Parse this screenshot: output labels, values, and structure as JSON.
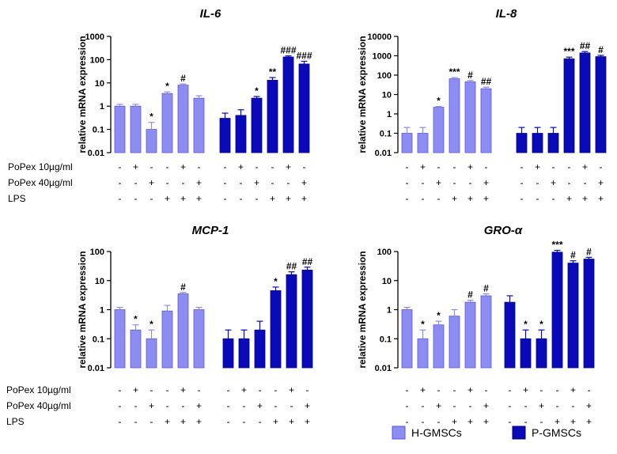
{
  "conditions": {
    "labels": [
      "PoPex 10µg/ml",
      "PoPex 40µg/ml",
      "LPS"
    ],
    "patterns": [
      [
        "-",
        "+",
        "-",
        "-",
        "+",
        "-"
      ],
      [
        "-",
        "-",
        "+",
        "-",
        "-",
        "+"
      ],
      [
        "-",
        "-",
        "-",
        "+",
        "+",
        "+"
      ]
    ]
  },
  "legend": {
    "items": [
      {
        "label": "H-GMSCs",
        "color": "#8c8cf2"
      },
      {
        "label": "P-GMSCs",
        "color": "#0a0ab8"
      }
    ]
  },
  "chart_data": [
    {
      "type": "bar",
      "title": "IL-6",
      "ylabel": "relative mRNA expression",
      "yscale": "log",
      "ylim": [
        0.01,
        1000
      ],
      "yticks": [
        "0.01",
        "0.1",
        "1",
        "10",
        "100",
        "1000"
      ],
      "series": [
        {
          "values": [
            1,
            1,
            0.1,
            3.5,
            8,
            2.2
          ],
          "errors": [
            0.2,
            0.2,
            0.1,
            0.6,
            1,
            0.6
          ],
          "sig": [
            "",
            "",
            "*",
            "*",
            "#",
            ""
          ]
        },
        {
          "values": [
            0.3,
            0.4,
            2.2,
            13,
            130,
            65
          ],
          "errors": [
            0.2,
            0.3,
            0.4,
            4,
            15,
            20
          ],
          "sig": [
            "",
            "",
            "*",
            "**",
            "###",
            "###"
          ]
        }
      ]
    },
    {
      "type": "bar",
      "title": "IL-8",
      "ylabel": "relative mRNA expression",
      "yscale": "log",
      "ylim": [
        0.01,
        10000
      ],
      "yticks": [
        "0.01",
        "0.1",
        "1",
        "10",
        "100",
        "1000",
        "10000"
      ],
      "series": [
        {
          "values": [
            0.1,
            0.1,
            2.2,
            65,
            45,
            20
          ],
          "errors": [
            0.1,
            0.1,
            0.2,
            10,
            8,
            4
          ],
          "sig": [
            "",
            "",
            "*",
            "***",
            "#",
            "##"
          ]
        },
        {
          "values": [
            0.1,
            0.1,
            0.1,
            700,
            1400,
            900
          ],
          "errors": [
            0.1,
            0.1,
            0.1,
            150,
            250,
            150
          ],
          "sig": [
            "",
            "",
            "",
            "***",
            "##",
            "#"
          ]
        }
      ]
    },
    {
      "type": "bar",
      "title": "MCP-1",
      "ylabel": "relative mRNA expression",
      "yscale": "log",
      "ylim": [
        0.01,
        100
      ],
      "yticks": [
        "0.01",
        "0.1",
        "1",
        "10",
        "100"
      ],
      "series": [
        {
          "values": [
            1,
            0.2,
            0.1,
            0.9,
            3.5,
            1
          ],
          "errors": [
            0.2,
            0.1,
            0.1,
            0.5,
            0.4,
            0.2
          ],
          "sig": [
            "",
            "*",
            "*",
            "",
            "#",
            ""
          ]
        },
        {
          "values": [
            0.1,
            0.1,
            0.2,
            4.5,
            16,
            23
          ],
          "errors": [
            0.1,
            0.1,
            0.2,
            1.5,
            4,
            6
          ],
          "sig": [
            "",
            "",
            "",
            "*",
            "##",
            "##"
          ]
        }
      ]
    },
    {
      "type": "bar",
      "title": "GRO-α",
      "ylabel": "relative mRNA expression",
      "yscale": "log",
      "ylim": [
        0.01,
        100
      ],
      "yticks": [
        "0.01",
        "0.1",
        "1",
        "10",
        "100"
      ],
      "series": [
        {
          "values": [
            1,
            0.1,
            0.3,
            0.6,
            1.8,
            3
          ],
          "errors": [
            0.2,
            0.1,
            0.1,
            0.4,
            0.3,
            0.5
          ],
          "sig": [
            "",
            "*",
            "*",
            "",
            "#",
            "#"
          ]
        },
        {
          "values": [
            1.8,
            0.1,
            0.1,
            95,
            40,
            55
          ],
          "errors": [
            1.2,
            0.1,
            0.1,
            15,
            8,
            8
          ],
          "sig": [
            "",
            "*",
            "*",
            "***",
            "#",
            "#"
          ]
        }
      ]
    }
  ]
}
